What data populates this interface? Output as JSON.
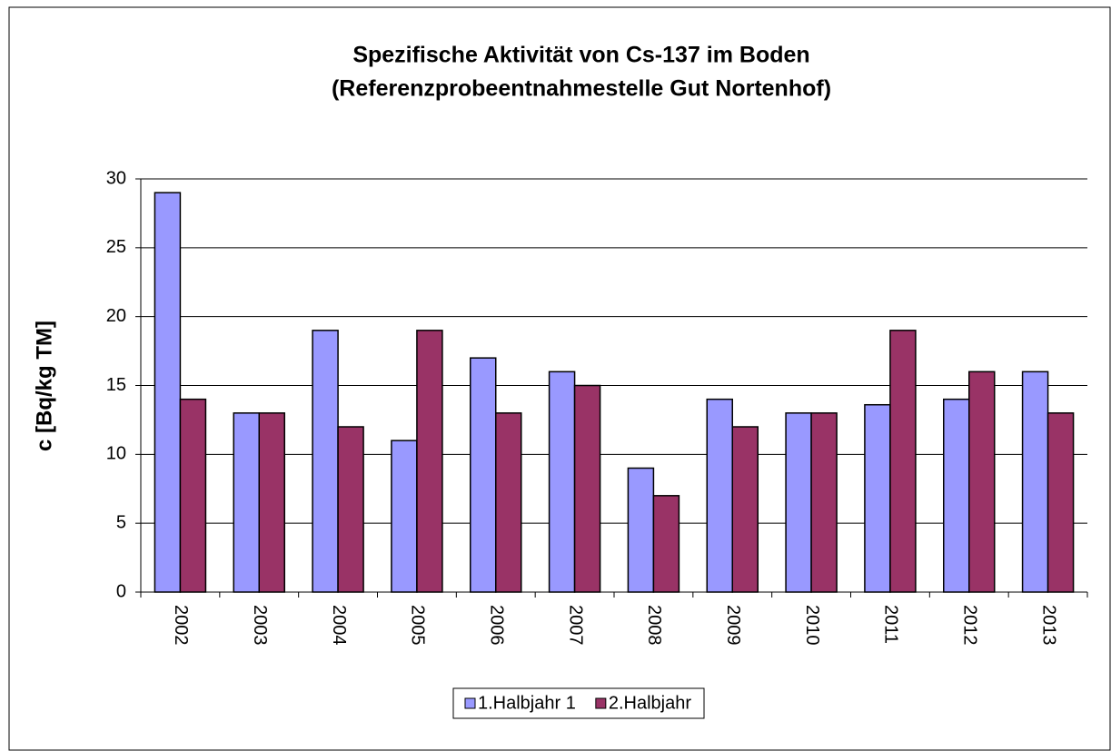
{
  "chart_data": {
    "type": "bar",
    "title": [
      "Spezifische Aktivität von Cs-137 im Boden",
      "(Referenzprobeentnahmestelle Gut Nortenhof)"
    ],
    "y_label": "c [Bq/kg TM]",
    "categories": [
      "2002",
      "2003",
      "2004",
      "2005",
      "2006",
      "2007",
      "2008",
      "2009",
      "2010",
      "2011",
      "2012",
      "2013"
    ],
    "series": [
      {
        "name": "1.Halbjahr 1",
        "color": "#9999ff",
        "values": [
          29,
          13,
          19,
          11,
          17,
          16,
          9,
          14,
          13,
          13.6,
          14,
          16
        ]
      },
      {
        "name": "2.Halbjahr",
        "color": "#993366",
        "values": [
          14,
          13,
          12,
          19,
          13,
          15,
          7,
          12,
          13,
          19,
          16,
          13
        ]
      }
    ],
    "ylim": [
      0,
      30
    ],
    "yticks": [
      0,
      5,
      10,
      15,
      20,
      25,
      30
    ],
    "grid": true,
    "legend": "bottom"
  }
}
